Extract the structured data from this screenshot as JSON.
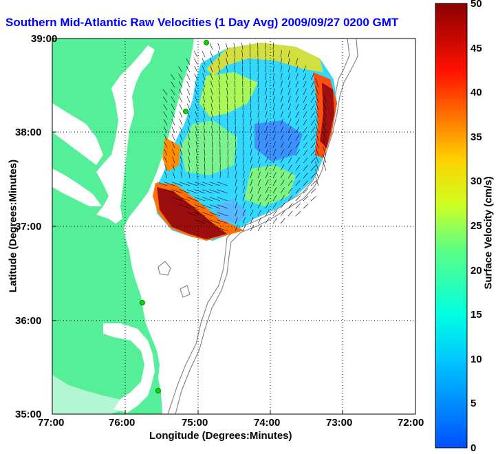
{
  "title": "Southern Mid-Atlantic Raw Velocities (1 Day Avg) 2009/09/27 0200 GMT",
  "xlabel": "Longitude (Degrees:Minutes)",
  "ylabel": "Latitude (Degrees:Minutes)",
  "colorbar_label": "Surface Velocity (cm/s)",
  "xticks": [
    "77:00",
    "76:00",
    "75:00",
    "74:00",
    "73:00",
    "72:00"
  ],
  "yticks": [
    "39:00",
    "38:00",
    "37:00",
    "36:00",
    "35:00"
  ],
  "cbar_ticks": [
    "0",
    "5",
    "10",
    "15",
    "20",
    "25",
    "30",
    "35",
    "40",
    "45",
    "50"
  ],
  "colors": {
    "land": "#55ee99",
    "title": "#0000ff",
    "bathymetry": "#888888",
    "station": "#00dd00"
  }
}
